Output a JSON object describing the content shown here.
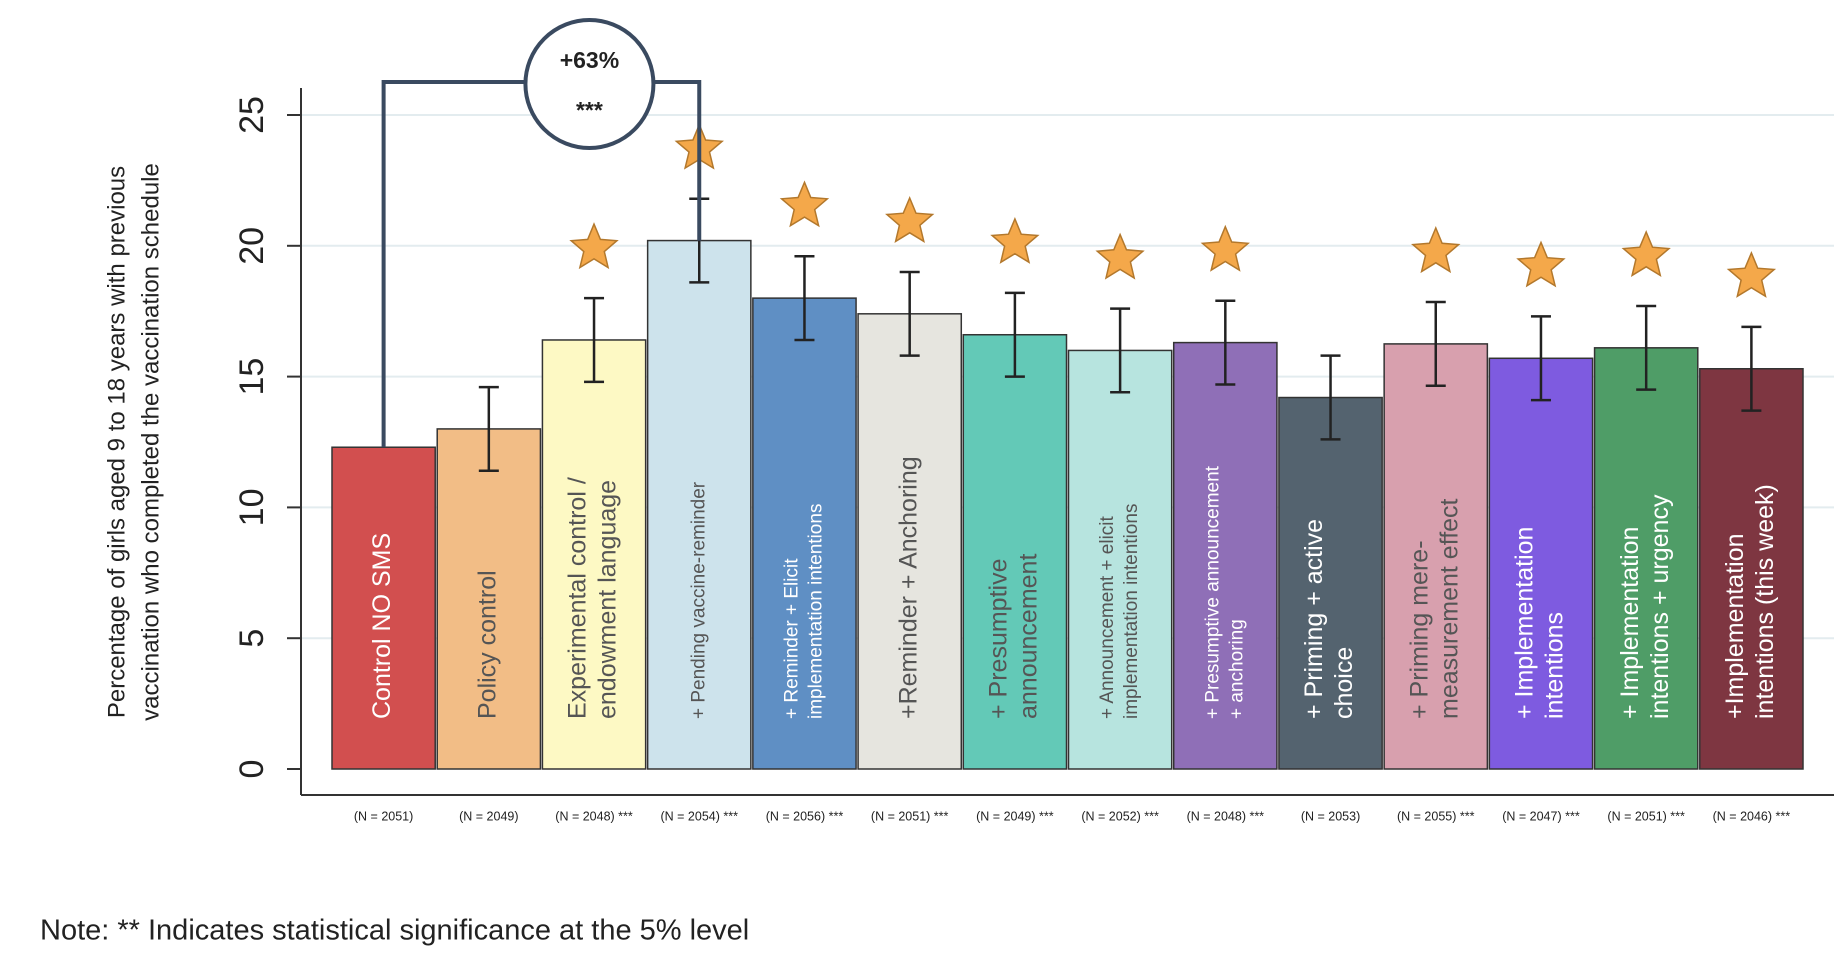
{
  "chart_data": {
    "type": "bar",
    "y_label": [
      "Percentage of girls aged 9 to 18 years with previous",
      "vaccination who completed the vaccination schedule"
    ],
    "categories": [
      [
        "Control NO SMS"
      ],
      [
        "Policy control"
      ],
      [
        "Experimental control /",
        "endowment language"
      ],
      [
        "+ Pending vaccine-reminder"
      ],
      [
        "+ Reminder + Elicit",
        "implementation intentions"
      ],
      [
        "+Reminder +  Anchoring"
      ],
      [
        "+ Presumptive",
        "announcement"
      ],
      [
        "+ Announcement + elicit",
        "implementation intentions"
      ],
      [
        "+ Presumptive announcement",
        "+ anchoring"
      ],
      [
        "+ Priming + active",
        "choice"
      ],
      [
        "+ Priming mere-",
        "measurement effect"
      ],
      [
        "+ Implementation",
        "intentions"
      ],
      [
        "+ Implementation",
        "intentions + urgency"
      ],
      [
        "+Implementation",
        "intentions (this week)"
      ]
    ],
    "values": [
      12.3,
      13.0,
      16.4,
      20.2,
      18.0,
      17.4,
      16.6,
      16.0,
      16.3,
      14.2,
      16.25,
      15.7,
      16.1,
      15.3
    ],
    "errors": [
      null,
      1.6,
      1.6,
      1.6,
      1.6,
      1.6,
      1.6,
      1.6,
      1.6,
      1.6,
      1.6,
      1.6,
      1.6,
      1.6
    ],
    "significant": [
      false,
      false,
      true,
      true,
      true,
      true,
      true,
      true,
      true,
      false,
      true,
      true,
      true,
      true
    ],
    "n_labels": [
      "(N = 2051)",
      "(N = 2049)",
      "(N = 2048) ***",
      "(N = 2054) ***",
      "(N = 2056) ***",
      "(N = 2051) ***",
      "(N = 2049) ***",
      "(N = 2052) ***",
      "(N = 2048) ***",
      "(N = 2053)",
      "(N = 2055) ***",
      "(N = 2047) ***",
      "(N = 2051) ***",
      "(N = 2046) ***"
    ],
    "colors": [
      "#d24f4f",
      "#f2bd86",
      "#fdf9c4",
      "#cde3ec",
      "#5f8fc4",
      "#e6e5df",
      "#63c9b7",
      "#b7e4df",
      "#8f6fb7",
      "#54636f",
      "#d8a0ae",
      "#7e5be0",
      "#4f9d67",
      "#7e3641"
    ],
    "annotation": {
      "text": "+63%",
      "stars": "***"
    },
    "ylim": [
      0,
      25
    ],
    "yticks": [
      0,
      5,
      10,
      15,
      20,
      25
    ],
    "grid": true,
    "note": "Note: ** Indicates statistical significance at the 5% level"
  }
}
